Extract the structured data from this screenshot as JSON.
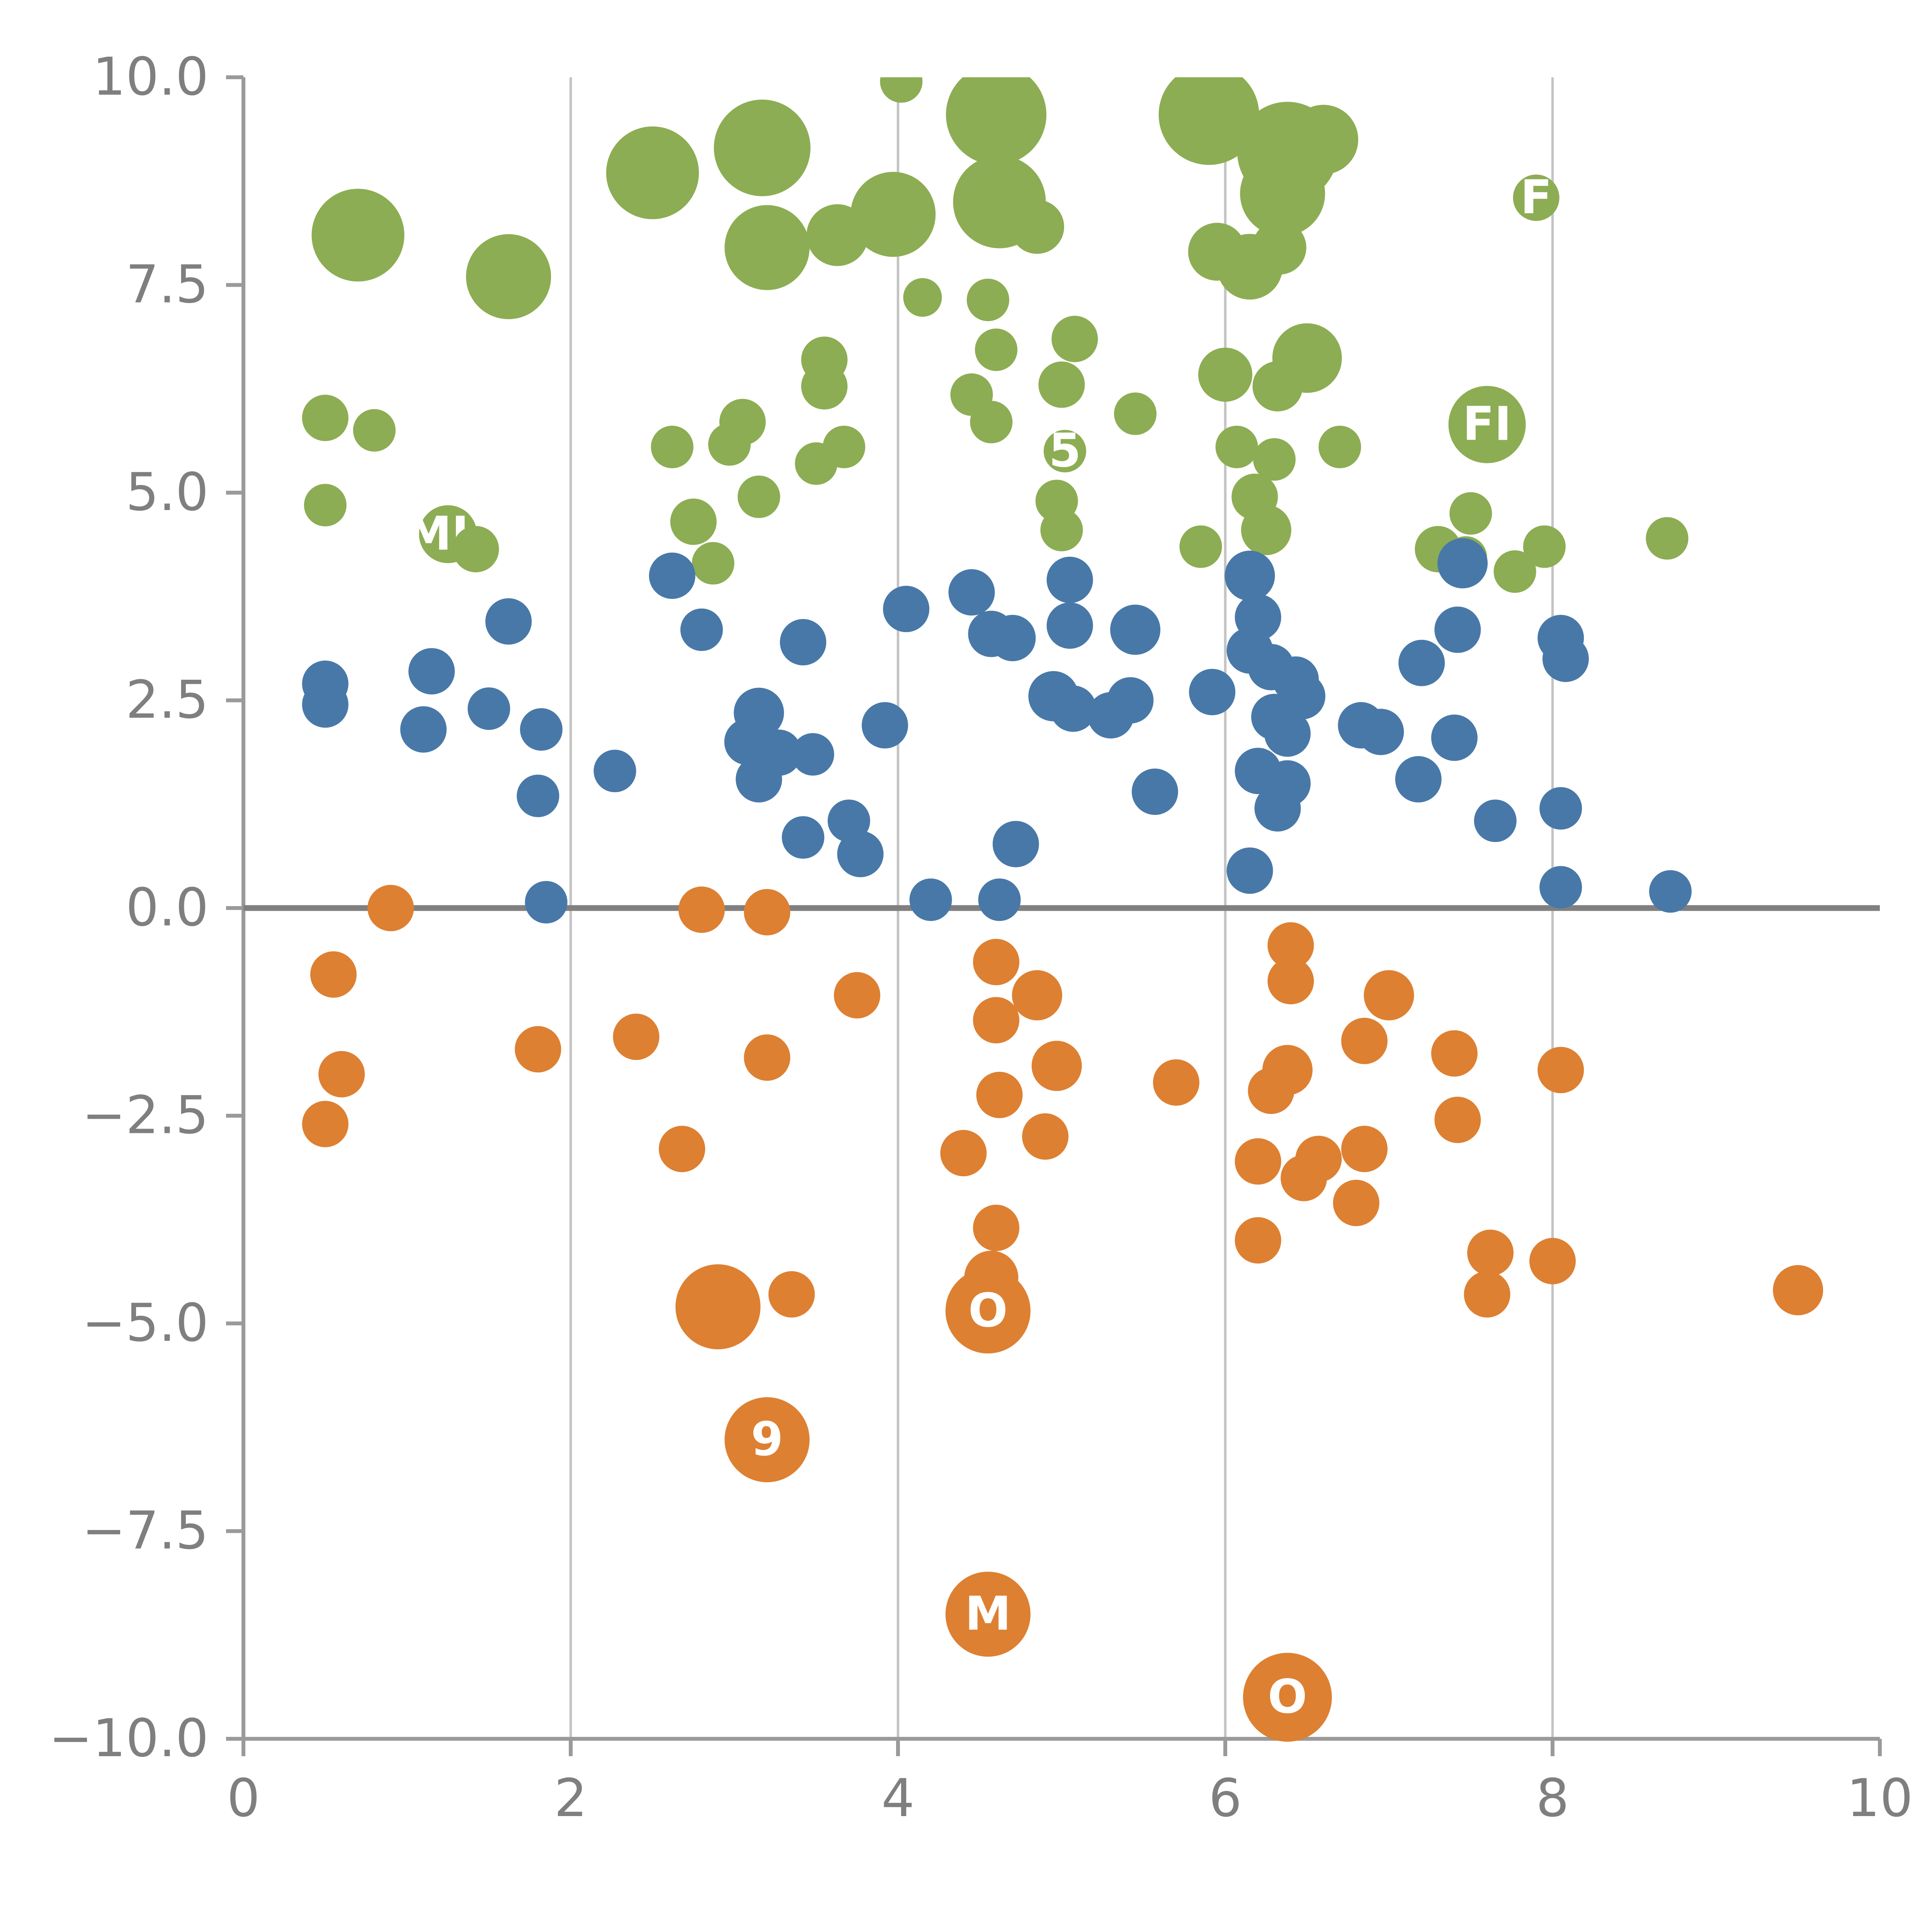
{
  "chart_data": {
    "type": "scatter",
    "title": "",
    "xlabel": "",
    "ylabel": "",
    "xlim": [
      0,
      10
    ],
    "ylim": [
      -10,
      10
    ],
    "grid": "vertical gridlines at x = 2, 4, 6, 8; dark horizontal line at y = 0",
    "legend": "none",
    "x_ticks": [
      {
        "value": 0,
        "label": "0"
      },
      {
        "value": 2,
        "label": "2"
      },
      {
        "value": 4,
        "label": "4"
      },
      {
        "value": 6,
        "label": "6"
      },
      {
        "value": 8,
        "label": "8"
      },
      {
        "value": 10,
        "label": "10"
      }
    ],
    "y_ticks": [
      {
        "value": 10,
        "label": "10.0"
      },
      {
        "value": 7.5,
        "label": "7.5"
      },
      {
        "value": 5,
        "label": "5.0"
      },
      {
        "value": 2.5,
        "label": "2.5"
      },
      {
        "value": 0,
        "label": "0.0"
      },
      {
        "value": -2.5,
        "label": "−2.5"
      },
      {
        "value": -5,
        "label": "−5.0"
      },
      {
        "value": -7.5,
        "label": "−7.5"
      },
      {
        "value": -10,
        "label": "−10.0"
      }
    ],
    "gridlines_x": [
      2,
      4,
      6,
      8
    ],
    "zero_line_y": 0,
    "colors": {
      "green": "#8cad53",
      "blue": "#4878a8",
      "orange": "#dd8032",
      "grid": "#c4c4c4",
      "spine": "#9a9a9a",
      "zero_line": "#808080",
      "tick_label": "#7f7f7f",
      "bubble_label": "#ffffff"
    },
    "series": [
      {
        "name": "green",
        "color_key": "green",
        "points": [
          [
            0.7,
            8.1,
            24
          ],
          [
            1.62,
            7.6,
            22
          ],
          [
            2.5,
            8.85,
            24
          ],
          [
            3.17,
            9.15,
            25
          ],
          [
            3.2,
            7.95,
            22
          ],
          [
            3.63,
            8.1,
            16
          ],
          [
            3.97,
            8.35,
            22
          ],
          [
            4.6,
            9.55,
            26
          ],
          [
            4.62,
            8.5,
            24
          ],
          [
            4.85,
            8.2,
            14
          ],
          [
            4.02,
            9.95,
            11
          ],
          [
            5.9,
            9.55,
            26
          ],
          [
            6.38,
            9.1,
            26
          ],
          [
            6.6,
            9.25,
            18
          ],
          [
            6.35,
            8.6,
            22
          ],
          [
            5.95,
            7.9,
            15
          ],
          [
            6.15,
            7.72,
            17
          ],
          [
            6.33,
            7.95,
            14
          ],
          [
            7.9,
            8.55,
            12,
            "F"
          ],
          [
            4.15,
            7.35,
            10
          ],
          [
            4.55,
            7.32,
            11
          ],
          [
            5.08,
            6.85,
            12
          ],
          [
            4.6,
            6.72,
            11
          ],
          [
            3.55,
            6.6,
            12
          ],
          [
            3.55,
            6.28,
            12
          ],
          [
            4.45,
            6.18,
            11
          ],
          [
            4.57,
            5.85,
            11
          ],
          [
            5.0,
            6.3,
            12
          ],
          [
            5.45,
            5.95,
            11
          ],
          [
            6.0,
            6.42,
            14
          ],
          [
            6.5,
            6.62,
            18
          ],
          [
            6.32,
            6.28,
            13
          ],
          [
            0.5,
            5.9,
            12
          ],
          [
            0.8,
            5.75,
            11
          ],
          [
            0.5,
            4.85,
            11
          ],
          [
            1.25,
            4.5,
            15,
            "MH"
          ],
          [
            1.42,
            4.32,
            12
          ],
          [
            2.62,
            5.55,
            11
          ],
          [
            3.05,
            5.85,
            12
          ],
          [
            2.97,
            5.58,
            11
          ],
          [
            3.5,
            5.35,
            11
          ],
          [
            3.67,
            5.55,
            11
          ],
          [
            2.75,
            4.65,
            12
          ],
          [
            3.15,
            4.95,
            11
          ],
          [
            2.87,
            4.15,
            11
          ],
          [
            5.02,
            5.5,
            11,
            "5"
          ],
          [
            4.97,
            4.9,
            11
          ],
          [
            5.0,
            4.55,
            11
          ],
          [
            6.07,
            5.55,
            11
          ],
          [
            6.3,
            5.4,
            11
          ],
          [
            6.18,
            4.95,
            12
          ],
          [
            6.25,
            4.55,
            13
          ],
          [
            5.85,
            4.35,
            11
          ],
          [
            6.7,
            5.55,
            11
          ],
          [
            7.6,
            5.82,
            20,
            "FI"
          ],
          [
            7.5,
            4.75,
            11
          ],
          [
            7.3,
            4.32,
            12
          ],
          [
            7.47,
            4.22,
            11
          ],
          [
            7.77,
            4.05,
            11
          ],
          [
            7.95,
            4.35,
            11
          ],
          [
            8.7,
            4.45,
            11
          ]
        ]
      },
      {
        "name": "blue",
        "color_key": "blue",
        "points": [
          [
            0.5,
            2.7,
            12
          ],
          [
            0.5,
            2.45,
            12
          ],
          [
            1.15,
            2.85,
            12
          ],
          [
            1.1,
            2.15,
            12
          ],
          [
            1.5,
            2.4,
            11
          ],
          [
            1.62,
            3.45,
            12
          ],
          [
            1.82,
            2.15,
            11
          ],
          [
            1.8,
            1.35,
            11
          ],
          [
            1.85,
            0.07,
            11
          ],
          [
            2.27,
            1.65,
            11
          ],
          [
            2.62,
            4.0,
            12
          ],
          [
            2.8,
            3.35,
            11
          ],
          [
            3.15,
            2.35,
            13
          ],
          [
            3.08,
            2.0,
            12
          ],
          [
            3.27,
            1.87,
            12
          ],
          [
            3.15,
            1.55,
            12
          ],
          [
            3.42,
            3.2,
            12
          ],
          [
            3.48,
            1.85,
            11
          ],
          [
            3.42,
            0.85,
            11
          ],
          [
            3.7,
            1.05,
            11
          ],
          [
            3.77,
            0.65,
            12
          ],
          [
            3.92,
            2.2,
            12
          ],
          [
            4.05,
            3.6,
            12
          ],
          [
            4.45,
            3.8,
            12
          ],
          [
            4.2,
            0.1,
            11
          ],
          [
            4.57,
            3.3,
            12
          ],
          [
            4.7,
            3.25,
            12
          ],
          [
            4.62,
            0.1,
            11
          ],
          [
            4.72,
            0.77,
            12
          ],
          [
            5.05,
            3.95,
            12
          ],
          [
            5.05,
            3.4,
            12
          ],
          [
            4.95,
            2.55,
            13
          ],
          [
            5.07,
            2.4,
            12
          ],
          [
            5.3,
            2.32,
            12
          ],
          [
            5.45,
            3.35,
            13
          ],
          [
            5.42,
            2.5,
            12
          ],
          [
            5.57,
            1.4,
            12
          ],
          [
            5.92,
            2.6,
            12
          ],
          [
            6.15,
            4.0,
            13
          ],
          [
            6.2,
            3.5,
            12
          ],
          [
            6.15,
            3.1,
            12
          ],
          [
            6.28,
            2.9,
            12
          ],
          [
            6.43,
            2.75,
            12
          ],
          [
            6.47,
            2.55,
            12
          ],
          [
            6.3,
            2.3,
            12
          ],
          [
            6.38,
            2.1,
            12
          ],
          [
            6.2,
            1.65,
            12
          ],
          [
            6.38,
            1.5,
            12
          ],
          [
            6.32,
            1.2,
            12
          ],
          [
            6.15,
            0.45,
            12
          ],
          [
            6.83,
            2.2,
            12
          ],
          [
            6.95,
            2.12,
            12
          ],
          [
            7.2,
            2.95,
            12
          ],
          [
            7.18,
            1.55,
            12
          ],
          [
            7.42,
            3.35,
            12
          ],
          [
            7.4,
            2.05,
            12
          ],
          [
            7.45,
            4.15,
            13
          ],
          [
            7.65,
            1.05,
            11
          ],
          [
            8.05,
            3.25,
            12
          ],
          [
            8.08,
            3.0,
            12
          ],
          [
            8.05,
            1.2,
            11
          ],
          [
            8.05,
            0.25,
            11
          ],
          [
            8.72,
            0.2,
            11
          ]
        ]
      },
      {
        "name": "orange",
        "color_key": "orange",
        "points": [
          [
            0.9,
            0.0,
            12
          ],
          [
            0.55,
            -0.8,
            12
          ],
          [
            0.6,
            -2.0,
            12
          ],
          [
            0.5,
            -2.6,
            12
          ],
          [
            1.8,
            -1.7,
            12
          ],
          [
            2.4,
            -1.55,
            12
          ],
          [
            2.8,
            -0.02,
            12
          ],
          [
            2.68,
            -2.9,
            12
          ],
          [
            3.2,
            -0.05,
            12
          ],
          [
            3.2,
            -1.8,
            12
          ],
          [
            2.9,
            -4.8,
            22
          ],
          [
            3.35,
            -4.65,
            12
          ],
          [
            3.2,
            -6.4,
            22,
            "9"
          ],
          [
            3.75,
            -1.05,
            12
          ],
          [
            4.4,
            -2.95,
            12
          ],
          [
            4.6,
            -0.65,
            12
          ],
          [
            4.6,
            -1.35,
            12
          ],
          [
            4.85,
            -1.05,
            13
          ],
          [
            4.62,
            -2.25,
            12
          ],
          [
            4.97,
            -1.9,
            13
          ],
          [
            4.9,
            -2.75,
            12
          ],
          [
            4.6,
            -3.85,
            12
          ],
          [
            4.57,
            -4.45,
            14
          ],
          [
            4.55,
            -4.85,
            22,
            "O"
          ],
          [
            4.55,
            -8.5,
            22,
            "M"
          ],
          [
            5.7,
            -2.1,
            12
          ],
          [
            6.2,
            -3.05,
            12
          ],
          [
            6.4,
            -0.45,
            12
          ],
          [
            6.4,
            -0.88,
            12
          ],
          [
            6.38,
            -1.95,
            13
          ],
          [
            6.28,
            -2.2,
            12
          ],
          [
            6.48,
            -3.25,
            12
          ],
          [
            6.57,
            -3.02,
            12
          ],
          [
            6.2,
            -4.0,
            12
          ],
          [
            6.85,
            -1.6,
            12
          ],
          [
            6.85,
            -2.9,
            12
          ],
          [
            6.8,
            -3.55,
            12
          ],
          [
            7.0,
            -1.05,
            13
          ],
          [
            7.4,
            -1.75,
            12
          ],
          [
            7.42,
            -2.55,
            12
          ],
          [
            7.62,
            -4.15,
            12
          ],
          [
            7.6,
            -4.65,
            12
          ],
          [
            8.05,
            -1.95,
            12
          ],
          [
            8.0,
            -4.25,
            12
          ],
          [
            9.5,
            -4.6,
            13
          ],
          [
            6.38,
            -9.5,
            23,
            "O"
          ]
        ]
      }
    ]
  }
}
